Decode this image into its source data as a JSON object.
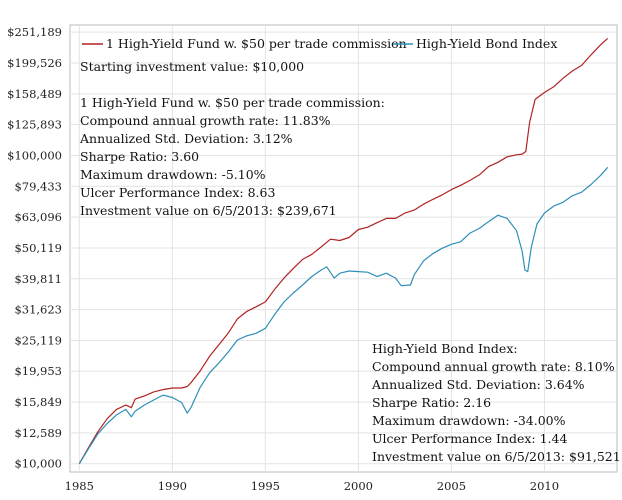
{
  "chart_data": {
    "type": "line",
    "y_scale": "log",
    "grid": true,
    "legend_position": "top",
    "y_ticks": [
      "$10,000",
      "$12,589",
      "$15,849",
      "$19,953",
      "$25,119",
      "$31,623",
      "$39,811",
      "$50,119",
      "$63,096",
      "$79,433",
      "$100,000",
      "$125,893",
      "$158,489",
      "$199,526",
      "$251,189"
    ],
    "y_tick_values": [
      10000,
      12589,
      15849,
      19953,
      25119,
      31623,
      39811,
      50119,
      63096,
      79433,
      100000,
      125893,
      158489,
      199526,
      251189
    ],
    "x_ticks": [
      "1985",
      "1990",
      "1995",
      "2000",
      "2005",
      "2010"
    ],
    "x_tick_values": [
      1985,
      1990,
      1995,
      2000,
      2005,
      2010
    ],
    "xlim": [
      1984.5,
      2013.9
    ],
    "ylim": [
      9400,
      265000
    ],
    "series": [
      {
        "name": "1 High-Yield Fund w. $50 per trade commission",
        "color": "#b22222",
        "x": [
          1985.0,
          1985.5,
          1986.0,
          1986.5,
          1987.0,
          1987.5,
          1987.8,
          1988.0,
          1988.5,
          1989.0,
          1989.5,
          1990.0,
          1990.5,
          1990.8,
          1991.0,
          1991.5,
          1992.0,
          1992.5,
          1993.0,
          1993.5,
          1994.0,
          1994.5,
          1995.0,
          1995.5,
          1996.0,
          1996.5,
          1997.0,
          1997.5,
          1998.0,
          1998.5,
          1999.0,
          1999.5,
          2000.0,
          2000.5,
          2001.0,
          2001.5,
          2002.0,
          2002.5,
          2003.0,
          2003.5,
          2004.0,
          2004.5,
          2005.0,
          2005.5,
          2006.0,
          2006.5,
          2007.0,
          2007.5,
          2008.0,
          2008.5,
          2008.8,
          2009.0,
          2009.2,
          2009.5,
          2010.0,
          2010.5,
          2011.0,
          2011.5,
          2012.0,
          2012.5,
          2013.0,
          2013.4
        ],
        "y": [
          10000,
          11300,
          12700,
          14000,
          15000,
          15500,
          15200,
          16200,
          16600,
          17100,
          17400,
          17600,
          17600,
          17800,
          18300,
          20000,
          22300,
          24300,
          26500,
          29500,
          31200,
          32300,
          33500,
          36800,
          40000,
          43000,
          46000,
          47800,
          50500,
          53500,
          53000,
          54200,
          57500,
          58500,
          60500,
          62500,
          62500,
          65000,
          66500,
          69500,
          72000,
          74500,
          77500,
          80000,
          83000,
          86500,
          92000,
          95000,
          99000,
          100500,
          101000,
          103000,
          128000,
          152000,
          160000,
          167000,
          178000,
          188000,
          196000,
          212000,
          228000,
          239671
        ]
      },
      {
        "name": "High-Yield Bond Index",
        "color": "#2e8fb8",
        "x": [
          1985.0,
          1985.5,
          1986.0,
          1986.5,
          1987.0,
          1987.5,
          1987.8,
          1988.0,
          1988.5,
          1989.0,
          1989.5,
          1990.0,
          1990.5,
          1990.8,
          1991.0,
          1991.5,
          1992.0,
          1992.5,
          1993.0,
          1993.5,
          1994.0,
          1994.5,
          1995.0,
          1995.5,
          1996.0,
          1996.5,
          1997.0,
          1997.5,
          1998.0,
          1998.3,
          1998.7,
          1999.0,
          1999.5,
          2000.0,
          2000.5,
          2001.0,
          2001.5,
          2002.0,
          2002.3,
          2002.8,
          2003.0,
          2003.5,
          2004.0,
          2004.5,
          2005.0,
          2005.5,
          2006.0,
          2006.5,
          2007.0,
          2007.5,
          2008.0,
          2008.5,
          2008.8,
          2008.95,
          2009.1,
          2009.3,
          2009.6,
          2010.0,
          2010.5,
          2011.0,
          2011.5,
          2012.0,
          2012.5,
          2013.0,
          2013.4
        ],
        "y": [
          10000,
          11200,
          12500,
          13500,
          14400,
          15000,
          14200,
          14800,
          15500,
          16100,
          16700,
          16400,
          15800,
          14600,
          15200,
          17700,
          19700,
          21200,
          23000,
          25200,
          26000,
          26500,
          27500,
          30500,
          33500,
          35800,
          38000,
          40500,
          42500,
          43500,
          40000,
          41500,
          42200,
          42000,
          41800,
          40500,
          41500,
          40000,
          37800,
          38000,
          41000,
          45500,
          48000,
          50000,
          51500,
          52500,
          56000,
          58000,
          61000,
          64000,
          62500,
          57000,
          49000,
          42500,
          42000,
          50500,
          60000,
          65000,
          68500,
          70500,
          74000,
          76000,
          80500,
          86000,
          91521
        ]
      }
    ],
    "annotations": {
      "starting_value": "Starting investment value: $10,000",
      "fund_stats": [
        "1 High-Yield Fund w. $50 per trade commission:",
        "Compound annual growth rate: 11.83%",
        "Annualized Std. Deviation: 3.12%",
        "Sharpe Ratio: 3.60",
        "Maximum drawdown: -5.10%",
        "Ulcer Performance Index: 8.63",
        "Investment value on 6/5/2013: $239,671"
      ],
      "index_stats": [
        "High-Yield Bond Index:",
        "Compound annual growth rate: 8.10%",
        "Annualized Std. Deviation: 3.64%",
        "Sharpe Ratio: 2.16",
        "Maximum drawdown: -34.00%",
        "Ulcer Performance Index: 1.44",
        "Investment value on 6/5/2013: $91,521"
      ]
    }
  }
}
